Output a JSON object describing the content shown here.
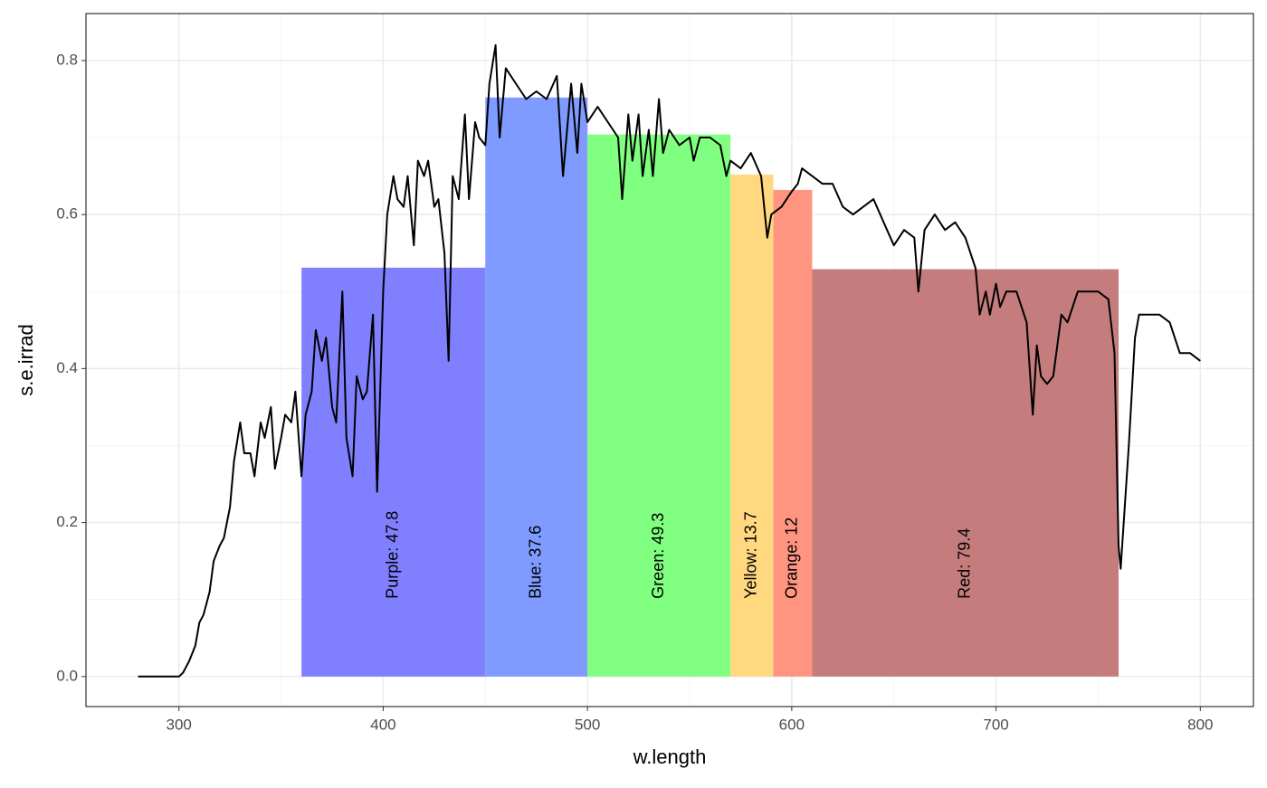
{
  "chart_data": {
    "type": "spectrum",
    "x_label": "w.length",
    "y_label": "s.e.irrad",
    "xlim": [
      254.5,
      826
    ],
    "ylim": [
      -0.039,
      0.861
    ],
    "xticks": [
      300,
      400,
      500,
      600,
      700,
      800
    ],
    "yticks": [
      {
        "value": 0,
        "label": "0.0"
      },
      0.2,
      0.4,
      0.6,
      0.8
    ],
    "grid": true,
    "minor_grid": true,
    "bands": [
      {
        "label": "Purple: 47.8",
        "xmin": 360,
        "xmax": 450,
        "value": 0.531,
        "color": "#8080ff"
      },
      {
        "label": "Blue: 37.6",
        "xmin": 450,
        "xmax": 500,
        "value": 0.752,
        "color": "#7f9bff"
      },
      {
        "label": "Green: 49.3",
        "xmin": 500,
        "xmax": 570,
        "value": 0.704,
        "color": "#80ff80"
      },
      {
        "label": "Yellow: 13.7",
        "xmin": 570,
        "xmax": 591,
        "value": 0.652,
        "color": "#ffd880"
      },
      {
        "label": "Orange: 12",
        "xmin": 591,
        "xmax": 610,
        "value": 0.632,
        "color": "#ff9580"
      },
      {
        "label": "Red: 79.4",
        "xmin": 610,
        "xmax": 760,
        "value": 0.529,
        "color": "#c47c7c"
      }
    ],
    "line": {
      "color": "#000000",
      "x": [
        280,
        290,
        300,
        302,
        305,
        308,
        310,
        312,
        315,
        317,
        320,
        322,
        325,
        327,
        330,
        332,
        335,
        337,
        340,
        342,
        345,
        347,
        350,
        352,
        355,
        357,
        360,
        362,
        365,
        367,
        370,
        372,
        375,
        377,
        380,
        382,
        385,
        387,
        390,
        392,
        395,
        397,
        400,
        402,
        405,
        407,
        410,
        412,
        415,
        417,
        420,
        422,
        425,
        427,
        430,
        432,
        434,
        437,
        440,
        442,
        445,
        447,
        450,
        452,
        455,
        457,
        460,
        465,
        470,
        475,
        480,
        485,
        488,
        490,
        492,
        495,
        497,
        500,
        505,
        510,
        515,
        517,
        520,
        522,
        525,
        527,
        530,
        532,
        535,
        537,
        540,
        545,
        550,
        552,
        555,
        560,
        565,
        568,
        570,
        575,
        580,
        585,
        588,
        590,
        595,
        600,
        603,
        605,
        610,
        615,
        620,
        625,
        630,
        635,
        640,
        645,
        650,
        655,
        660,
        662,
        665,
        670,
        675,
        680,
        685,
        690,
        692,
        695,
        697,
        700,
        702,
        705,
        710,
        715,
        718,
        720,
        722,
        725,
        728,
        730,
        732,
        735,
        740,
        745,
        750,
        755,
        758,
        760,
        761,
        763,
        765,
        768,
        770,
        775,
        780,
        785,
        790,
        795,
        800
      ],
      "values": [
        0,
        0,
        0,
        0.005,
        0.02,
        0.04,
        0.07,
        0.08,
        0.11,
        0.15,
        0.17,
        0.18,
        0.22,
        0.28,
        0.33,
        0.29,
        0.29,
        0.26,
        0.33,
        0.31,
        0.35,
        0.27,
        0.31,
        0.34,
        0.33,
        0.37,
        0.26,
        0.34,
        0.37,
        0.45,
        0.41,
        0.44,
        0.35,
        0.33,
        0.5,
        0.31,
        0.26,
        0.39,
        0.36,
        0.37,
        0.47,
        0.24,
        0.5,
        0.6,
        0.65,
        0.62,
        0.61,
        0.65,
        0.56,
        0.67,
        0.65,
        0.67,
        0.61,
        0.62,
        0.55,
        0.41,
        0.65,
        0.62,
        0.73,
        0.62,
        0.72,
        0.7,
        0.69,
        0.77,
        0.82,
        0.7,
        0.79,
        0.77,
        0.75,
        0.76,
        0.75,
        0.78,
        0.65,
        0.71,
        0.77,
        0.68,
        0.77,
        0.72,
        0.74,
        0.72,
        0.7,
        0.62,
        0.73,
        0.67,
        0.73,
        0.65,
        0.71,
        0.65,
        0.75,
        0.68,
        0.71,
        0.69,
        0.7,
        0.67,
        0.7,
        0.7,
        0.69,
        0.65,
        0.67,
        0.66,
        0.68,
        0.65,
        0.57,
        0.6,
        0.61,
        0.63,
        0.64,
        0.66,
        0.65,
        0.64,
        0.64,
        0.61,
        0.6,
        0.61,
        0.62,
        0.59,
        0.56,
        0.58,
        0.57,
        0.5,
        0.58,
        0.6,
        0.58,
        0.59,
        0.57,
        0.53,
        0.47,
        0.5,
        0.47,
        0.51,
        0.48,
        0.5,
        0.5,
        0.46,
        0.34,
        0.43,
        0.39,
        0.38,
        0.39,
        0.43,
        0.47,
        0.46,
        0.5,
        0.5,
        0.5,
        0.49,
        0.42,
        0.17,
        0.14,
        0.22,
        0.3,
        0.44,
        0.47,
        0.47,
        0.47,
        0.46,
        0.42,
        0.42,
        0.41
      ]
    }
  }
}
